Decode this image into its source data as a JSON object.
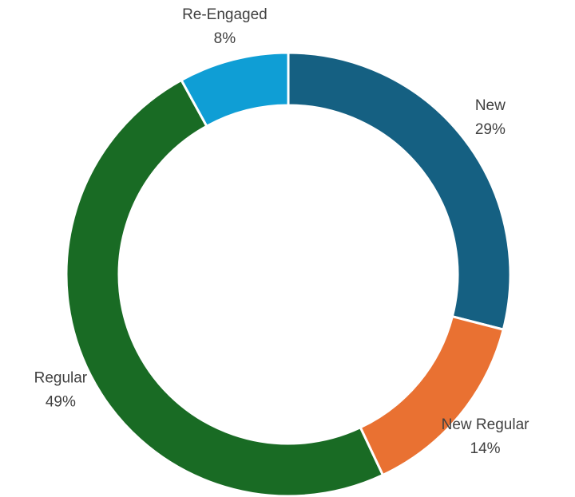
{
  "chart_data": {
    "type": "pie",
    "donut": true,
    "categories": [
      "New",
      "New Regular",
      "Regular",
      "Re-Engaged"
    ],
    "values": [
      29,
      14,
      49,
      8
    ],
    "value_labels": [
      "29%",
      "14%",
      "49%",
      "8%"
    ],
    "colors": [
      "#156082",
      "#e97132",
      "#196b24",
      "#0f9ed5"
    ]
  }
}
